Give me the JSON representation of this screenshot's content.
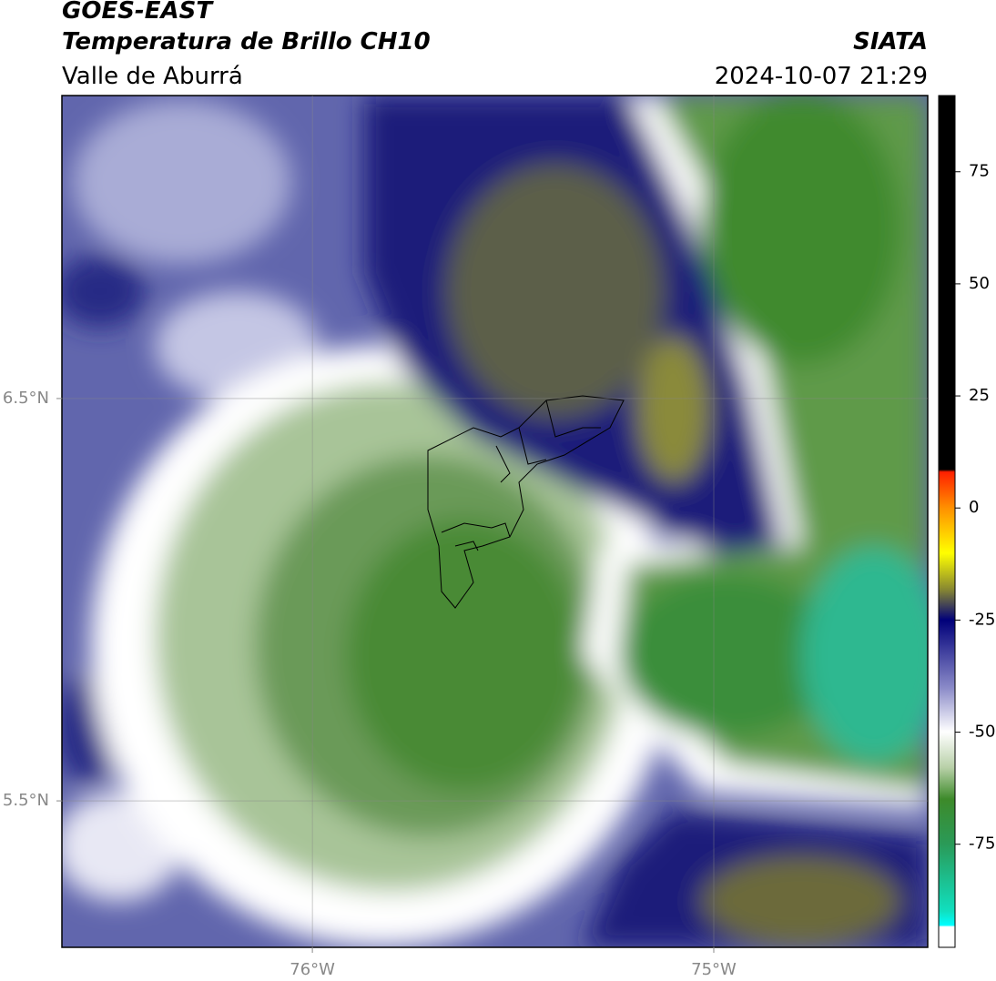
{
  "header": {
    "title": "GOES-EAST",
    "subtitle": "Temperatura de Brillo CH10",
    "region": "Valle de Aburrá",
    "source": "SIATA",
    "datetime": "2024-10-07 21:29"
  },
  "map": {
    "xlim": [
      -76.624,
      -74.467
    ],
    "ylim": [
      5.136,
      7.253
    ],
    "xticks": [
      {
        "value": -76,
        "label": "76°W"
      },
      {
        "value": -75,
        "label": "75°W"
      }
    ],
    "yticks": [
      {
        "value": 6.5,
        "label": "6.5°N"
      },
      {
        "value": 5.5,
        "label": "5.5°N"
      }
    ],
    "grid": true
  },
  "colorbar": {
    "lim": [
      -98,
      92
    ],
    "ticks": [
      75,
      50,
      25,
      0,
      -25,
      -50,
      -75
    ]
  }
}
